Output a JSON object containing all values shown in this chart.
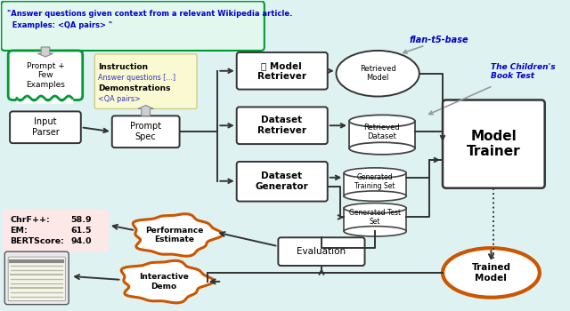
{
  "fig_width": 6.4,
  "fig_height": 3.5,
  "dpi": 100,
  "bg_color": "#dff2f2",
  "title_text": "\"Answer questions given context from a relevant Wikipedia article.\n  Examples: <QA pairs> \"",
  "title_color": "#0000cc",
  "flan_label": "flan-t5-base",
  "flan_color": "#0000cc",
  "childrens_label": "The Children's\nBook Test",
  "childrens_color": "#0000cc",
  "metrics_text1": "ChrF++:",
  "metrics_val1": "58.9",
  "metrics_text2": "EM:",
  "metrics_val2": "61.5",
  "metrics_text3": "BERTScore:",
  "metrics_val3": "94.0",
  "metrics_bg": "#fde8e8",
  "gray_arrow": "#999999",
  "dark": "#333333",
  "orange": "#cc5500",
  "green": "#009933",
  "yellow_bg": "#fafad2",
  "blue_text": "#3333cc"
}
